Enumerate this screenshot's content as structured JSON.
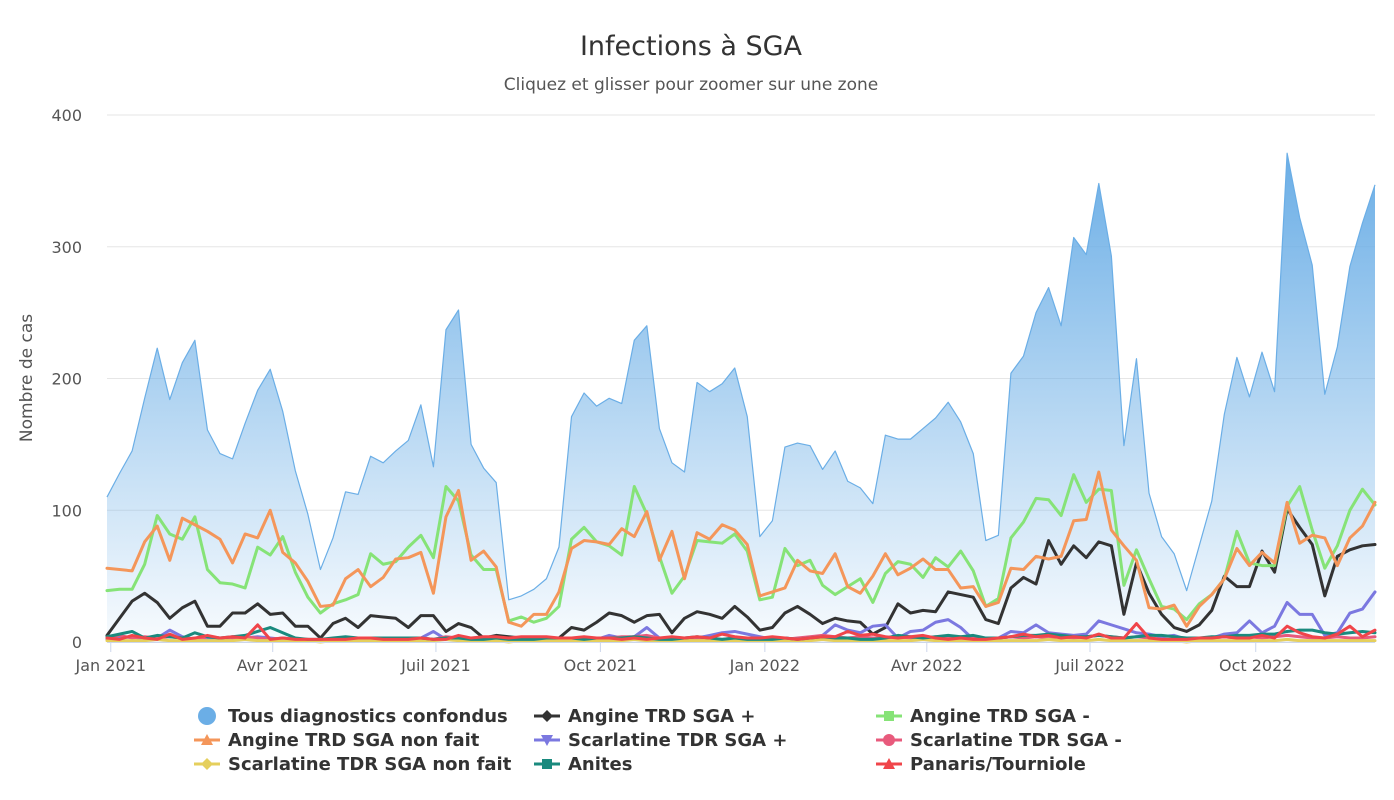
{
  "chart_data": {
    "type": "line",
    "title": "Infections à SGA",
    "subtitle": "Cliquez et glisser pour zoomer sur une zone",
    "ylabel": "Nombre de cas",
    "xlabel": "",
    "ylim": [
      0,
      400
    ],
    "yticks": [
      0,
      100,
      200,
      300,
      400
    ],
    "x_start": "2021-01-01",
    "x_interval_weeks": 1,
    "xticks": [
      {
        "label": "Jan 2021",
        "week": 0.3
      },
      {
        "label": "Avr 2021",
        "week": 13.2
      },
      {
        "label": "Juil 2021",
        "week": 26.2
      },
      {
        "label": "Oct 2021",
        "week": 39.3
      },
      {
        "label": "Jan 2022",
        "week": 52.4
      },
      {
        "label": "Avr 2022",
        "week": 65.3
      },
      {
        "label": "Juil 2022",
        "week": 78.3
      },
      {
        "label": "Oct 2022",
        "week": 91.5
      }
    ],
    "legend_position": "bottom",
    "series": [
      {
        "name": "Tous diagnostics confondus",
        "type": "area",
        "color": "#6baee6",
        "marker": "circle",
        "values": [
          110,
          128,
          145,
          185,
          223,
          184,
          212,
          229,
          161,
          143,
          139,
          166,
          191,
          207,
          175,
          130,
          97,
          55,
          79,
          114,
          112,
          141,
          136,
          145,
          153,
          180,
          133,
          237,
          252,
          150,
          132,
          121,
          32,
          35,
          40,
          48,
          72,
          171,
          189,
          179,
          185,
          181,
          229,
          240,
          162,
          136,
          129,
          197,
          190,
          196,
          208,
          171,
          80,
          92,
          148,
          151,
          149,
          131,
          145,
          122,
          117,
          105,
          157,
          154,
          154,
          162,
          170,
          182,
          167,
          143,
          77,
          81,
          204,
          217,
          250,
          269,
          240,
          307,
          294,
          348,
          293,
          149,
          215,
          113,
          80,
          67,
          39,
          73,
          107,
          173,
          216,
          186,
          220,
          190,
          371,
          322,
          286,
          188,
          224,
          285,
          318,
          347
        ]
      },
      {
        "name": "Angine TRD SGA +",
        "type": "line",
        "color": "#333333",
        "marker": "diamond",
        "values": [
          5,
          18,
          31,
          37,
          30,
          18,
          26,
          31,
          12,
          12,
          22,
          22,
          29,
          21,
          22,
          12,
          12,
          3,
          14,
          18,
          11,
          20,
          19,
          18,
          11,
          20,
          20,
          8,
          14,
          11,
          3,
          5,
          4,
          3,
          3,
          3,
          3,
          11,
          9,
          15,
          22,
          20,
          15,
          20,
          21,
          7,
          18,
          23,
          21,
          18,
          27,
          19,
          9,
          11,
          22,
          27,
          21,
          14,
          18,
          16,
          15,
          6,
          11,
          29,
          22,
          24,
          23,
          38,
          36,
          34,
          17,
          14,
          41,
          49,
          44,
          77,
          59,
          73,
          64,
          76,
          73,
          21,
          60,
          37,
          21,
          11,
          8,
          13,
          24,
          50,
          42,
          42,
          69,
          53,
          101,
          87,
          74,
          35,
          65,
          70,
          73,
          74
        ]
      },
      {
        "name": "Angine TRD SGA -",
        "type": "line",
        "color": "#86e377",
        "marker": "square",
        "values": [
          39,
          40,
          40,
          59,
          96,
          82,
          78,
          95,
          55,
          45,
          44,
          41,
          72,
          66,
          80,
          53,
          34,
          22,
          29,
          32,
          36,
          67,
          59,
          61,
          72,
          81,
          64,
          118,
          107,
          66,
          55,
          55,
          16,
          19,
          15,
          18,
          27,
          78,
          87,
          76,
          73,
          66,
          118,
          97,
          65,
          37,
          50,
          77,
          76,
          75,
          82,
          69,
          32,
          34,
          71,
          58,
          62,
          43,
          36,
          42,
          48,
          30,
          52,
          61,
          59,
          49,
          64,
          57,
          69,
          54,
          27,
          33,
          79,
          91,
          109,
          108,
          96,
          127,
          106,
          116,
          115,
          43,
          70,
          48,
          27,
          25,
          17,
          29,
          36,
          48,
          84,
          60,
          58,
          58,
          103,
          118,
          85,
          56,
          73,
          100,
          116,
          104
        ]
      },
      {
        "name": "Angine TRD SGA non fait",
        "type": "line",
        "color": "#f4965a",
        "marker": "triangle",
        "values": [
          56,
          55,
          54,
          76,
          88,
          62,
          94,
          89,
          84,
          78,
          60,
          82,
          79,
          100,
          68,
          60,
          46,
          27,
          28,
          48,
          55,
          42,
          49,
          63,
          64,
          68,
          37,
          95,
          115,
          62,
          69,
          57,
          15,
          12,
          21,
          21,
          38,
          71,
          77,
          76,
          74,
          86,
          80,
          99,
          62,
          84,
          48,
          83,
          78,
          89,
          85,
          74,
          35,
          38,
          41,
          62,
          54,
          52,
          67,
          42,
          37,
          50,
          67,
          51,
          56,
          63,
          55,
          55,
          41,
          42,
          27,
          30,
          56,
          55,
          65,
          63,
          65,
          92,
          93,
          129,
          85,
          73,
          62,
          26,
          25,
          28,
          12,
          27,
          36,
          48,
          71,
          58,
          68,
          60,
          106,
          75,
          81,
          79,
          58,
          79,
          88,
          106
        ]
      },
      {
        "name": "Scarlatine TDR SGA +",
        "type": "line",
        "color": "#7b78e0",
        "marker": "triangle-down",
        "values": [
          2,
          3,
          4,
          2,
          3,
          9,
          4,
          2,
          3,
          2,
          4,
          3,
          4,
          3,
          2,
          1,
          1,
          1,
          2,
          1,
          2,
          1,
          2,
          1,
          2,
          3,
          8,
          2,
          2,
          3,
          2,
          1,
          1,
          1,
          2,
          2,
          3,
          3,
          2,
          2,
          5,
          3,
          4,
          11,
          3,
          2,
          3,
          3,
          5,
          7,
          8,
          6,
          4,
          2,
          3,
          2,
          3,
          5,
          13,
          9,
          7,
          12,
          13,
          3,
          8,
          9,
          15,
          17,
          11,
          2,
          2,
          3,
          8,
          7,
          13,
          7,
          6,
          5,
          6,
          16,
          13,
          10,
          7,
          6,
          4,
          5,
          2,
          2,
          3,
          6,
          7,
          16,
          7,
          12,
          30,
          21,
          21,
          5,
          7,
          22,
          25,
          38
        ]
      },
      {
        "name": "Scarlatine TDR SGA -",
        "type": "line",
        "color": "#e85a7c",
        "marker": "circle",
        "values": [
          3,
          5,
          3,
          4,
          3,
          4,
          3,
          2,
          4,
          3,
          3,
          4,
          3,
          2,
          3,
          2,
          2,
          1,
          2,
          2,
          2,
          2,
          3,
          2,
          2,
          3,
          2,
          4,
          3,
          3,
          2,
          3,
          2,
          3,
          2,
          3,
          2,
          3,
          3,
          2,
          3,
          4,
          4,
          5,
          3,
          2,
          2,
          3,
          2,
          2,
          3,
          3,
          2,
          3,
          2,
          3,
          4,
          5,
          4,
          3,
          4,
          3,
          3,
          4,
          3,
          3,
          4,
          3,
          4,
          3,
          2,
          3,
          4,
          3,
          4,
          3,
          4,
          3,
          4,
          5,
          4,
          3,
          4,
          3,
          2,
          2,
          1,
          2,
          3,
          4,
          3,
          4,
          3,
          4,
          5,
          4,
          3,
          3,
          4,
          3,
          3,
          4
        ]
      },
      {
        "name": "Scarlatine TDR SGA non fait",
        "type": "line",
        "color": "#e5cf5c",
        "marker": "diamond",
        "values": [
          1,
          1,
          1,
          1,
          2,
          1,
          1,
          1,
          1,
          1,
          1,
          2,
          1,
          1,
          1,
          1,
          1,
          0,
          1,
          1,
          1,
          1,
          1,
          1,
          1,
          1,
          1,
          2,
          1,
          1,
          1,
          1,
          0,
          1,
          1,
          1,
          1,
          1,
          1,
          1,
          1,
          1,
          2,
          1,
          1,
          1,
          1,
          1,
          1,
          1,
          1,
          1,
          1,
          1,
          1,
          1,
          1,
          2,
          1,
          1,
          1,
          1,
          1,
          1,
          1,
          2,
          1,
          1,
          1,
          1,
          1,
          1,
          1,
          1,
          1,
          2,
          1,
          1,
          1,
          2,
          1,
          1,
          1,
          1,
          1,
          1,
          0,
          1,
          1,
          1,
          1,
          1,
          1,
          1,
          2,
          1,
          1,
          1,
          1,
          1,
          1,
          1
        ]
      },
      {
        "name": "Anites",
        "type": "line",
        "color": "#1a8a7e",
        "marker": "square",
        "values": [
          4,
          6,
          8,
          3,
          5,
          4,
          3,
          7,
          4,
          3,
          4,
          5,
          8,
          11,
          7,
          3,
          2,
          2,
          3,
          4,
          3,
          3,
          3,
          3,
          3,
          3,
          2,
          3,
          3,
          2,
          2,
          3,
          2,
          2,
          2,
          3,
          3,
          3,
          2,
          3,
          3,
          3,
          4,
          3,
          2,
          2,
          3,
          4,
          3,
          2,
          3,
          2,
          2,
          2,
          3,
          2,
          3,
          4,
          3,
          3,
          2,
          2,
          3,
          5,
          4,
          3,
          4,
          5,
          4,
          5,
          3,
          3,
          4,
          5,
          5,
          6,
          5,
          4,
          4,
          5,
          4,
          3,
          4,
          5,
          5,
          4,
          3,
          3,
          4,
          4,
          5,
          5,
          6,
          6,
          8,
          9,
          9,
          7,
          6,
          7,
          8,
          7
        ]
      },
      {
        "name": "Panaris/Tourniole",
        "type": "line",
        "color": "#f0454a",
        "marker": "triangle",
        "values": [
          3,
          2,
          5,
          3,
          2,
          6,
          2,
          3,
          5,
          3,
          4,
          3,
          13,
          2,
          3,
          2,
          2,
          2,
          2,
          2,
          3,
          3,
          2,
          2,
          2,
          3,
          2,
          2,
          5,
          3,
          4,
          4,
          3,
          4,
          4,
          4,
          3,
          3,
          4,
          3,
          3,
          2,
          3,
          2,
          3,
          4,
          3,
          4,
          3,
          6,
          4,
          3,
          3,
          4,
          3,
          2,
          3,
          4,
          4,
          8,
          5,
          6,
          4,
          3,
          4,
          5,
          3,
          2,
          3,
          2,
          2,
          3,
          4,
          6,
          4,
          5,
          3,
          4,
          3,
          6,
          3,
          3,
          14,
          3,
          2,
          2,
          2,
          3,
          3,
          4,
          3,
          3,
          5,
          3,
          12,
          7,
          4,
          3,
          6,
          12,
          4,
          9
        ]
      }
    ]
  }
}
